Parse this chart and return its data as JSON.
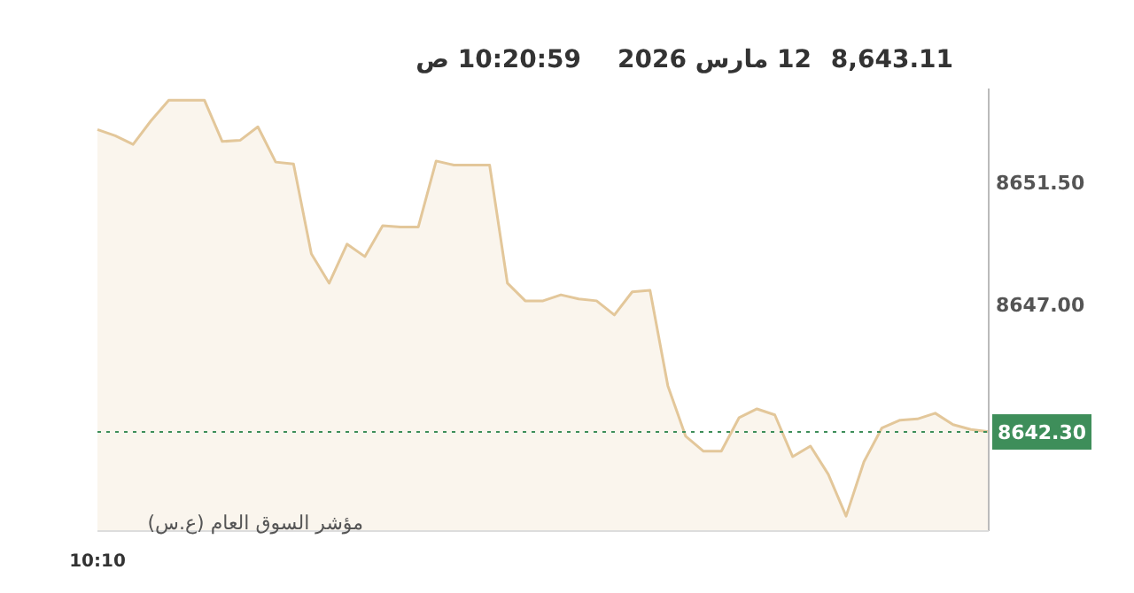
{
  "chart_data": {
    "type": "area",
    "title": "8,643.11",
    "annotations": [
      "12 مارس 2026",
      "10:20:59 ص",
      "مؤشر السوق العام (ع.س)"
    ],
    "categories": [
      "10:10",
      null,
      null,
      null,
      null,
      null,
      null,
      null,
      null,
      null,
      null,
      null,
      null,
      null,
      null,
      null,
      null,
      null,
      null,
      null,
      null,
      null,
      null,
      null,
      null,
      null,
      null,
      null,
      null,
      null,
      null,
      null,
      null,
      null,
      null,
      null,
      null,
      null,
      null,
      null,
      null,
      null,
      null,
      null,
      null,
      null,
      null,
      null,
      null,
      null,
      null
    ],
    "series": [
      {
        "color": "#e3c79a",
        "values": [
          8653.44,
          8653.21,
          8652.89,
          8653.76,
          8654.52,
          8654.52,
          8654.52,
          8653.0,
          8653.04,
          8653.54,
          8652.24,
          8652.17,
          8648.86,
          8647.78,
          8649.22,
          8648.76,
          8649.9,
          8649.85,
          8649.85,
          8652.28,
          8652.13,
          8652.13,
          8652.13,
          8647.78,
          8647.13,
          8647.13,
          8647.35,
          8647.2,
          8647.13,
          8646.61,
          8647.46,
          8647.52,
          8644.0,
          8642.14,
          8641.59,
          8641.59,
          8642.83,
          8643.15,
          8642.93,
          8641.39,
          8641.78,
          8640.74,
          8639.2,
          8641.2,
          8642.44,
          8642.73,
          8642.78,
          8642.99,
          8642.57,
          8642.39,
          8642.31
        ]
      }
    ],
    "ylim": [
      8638.65,
      8654.95
    ],
    "yticks": [
      {
        "value": 8651.5,
        "label": "8651.50"
      },
      {
        "value": 8647.0,
        "label": "8647.00"
      }
    ],
    "ref_lines": [
      {
        "axis": "y",
        "value": 8642.3,
        "label": "8642.30",
        "color": "#3e8e5a",
        "line_style": "dotted"
      }
    ]
  }
}
